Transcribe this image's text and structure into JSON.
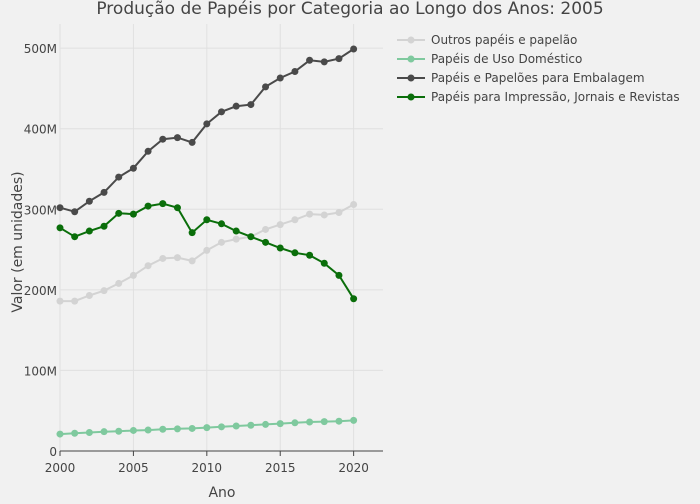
{
  "chart_data": {
    "type": "line",
    "title": "Produção de Papéis por Categoria ao Longo dos Anos: 2005",
    "xlabel": "Ano",
    "ylabel": "Valor (em unidades)",
    "x": [
      2000,
      2001,
      2002,
      2003,
      2004,
      2005,
      2006,
      2007,
      2008,
      2009,
      2010,
      2011,
      2012,
      2013,
      2014,
      2015,
      2016,
      2017,
      2018,
      2019,
      2020
    ],
    "xlim": [
      2000,
      2022
    ],
    "ylim": [
      0,
      530000000
    ],
    "x_ticks": [
      2000,
      2005,
      2010,
      2015,
      2020
    ],
    "x_tick_labels": [
      "2000",
      "2005",
      "2010",
      "2015",
      "2020"
    ],
    "y_ticks": [
      0,
      100000000,
      200000000,
      300000000,
      400000000,
      500000000
    ],
    "y_tick_labels": [
      "0",
      "100M",
      "200M",
      "300M",
      "400M",
      "500M"
    ],
    "grid": true,
    "legend_position": "top-right",
    "series": [
      {
        "name": "Outros papéis e papelão",
        "color": "#d3d3d3",
        "values": [
          186000000,
          186000000,
          193000000,
          199000000,
          208000000,
          218000000,
          230000000,
          239000000,
          240000000,
          236000000,
          249000000,
          259000000,
          263000000,
          266000000,
          275000000,
          281000000,
          287000000,
          294000000,
          293000000,
          296000000,
          306000000
        ]
      },
      {
        "name": "Papéis de Uso Doméstico",
        "color": "#7fc99e",
        "values": [
          21000000,
          22000000,
          23000000,
          24000000,
          24500000,
          25500000,
          26000000,
          27000000,
          27500000,
          28000000,
          29000000,
          30000000,
          31000000,
          32000000,
          33000000,
          34000000,
          35000000,
          36000000,
          36500000,
          37000000,
          38000000
        ]
      },
      {
        "name": "Papéis e Papelões para Embalagem",
        "color": "#4a4a4a",
        "values": [
          302000000,
          297000000,
          310000000,
          321000000,
          340000000,
          351000000,
          372000000,
          387000000,
          389000000,
          383000000,
          406000000,
          421000000,
          428000000,
          430000000,
          452000000,
          463000000,
          471000000,
          485000000,
          483000000,
          487000000,
          499000000
        ]
      },
      {
        "name": "Papéis para Impressão, Jornais e Revistas",
        "color": "#0a6e0a",
        "values": [
          277000000,
          266000000,
          273000000,
          279000000,
          295000000,
          294000000,
          304000000,
          307000000,
          302000000,
          271000000,
          287000000,
          282000000,
          273000000,
          266000000,
          259000000,
          252000000,
          246000000,
          243000000,
          233000000,
          218000000,
          189000000
        ]
      }
    ]
  }
}
